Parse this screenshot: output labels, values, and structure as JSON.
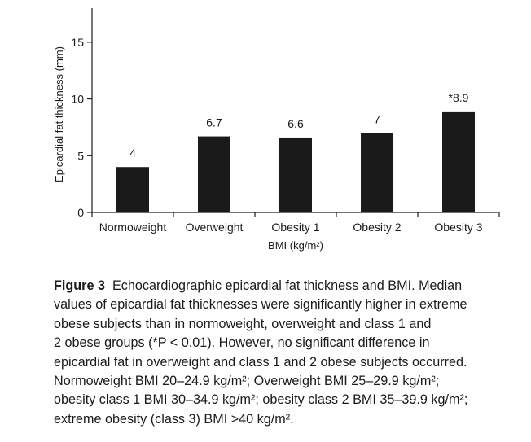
{
  "chart_data": {
    "type": "bar",
    "categories": [
      "Normoweight",
      "Overweight",
      "Obesity 1",
      "Obesity 2",
      "Obesity 3"
    ],
    "values": [
      4,
      6.7,
      6.6,
      7,
      8.9
    ],
    "data_labels": [
      "4",
      "6.7",
      "6.6",
      "7",
      "*8.9"
    ],
    "ylabel": "Epicardial fat thickness (mm)",
    "xlabel": "BMI (kg/m²)",
    "ylim": [
      0,
      18
    ],
    "yticks": [
      0,
      5,
      10,
      15
    ],
    "grid": false,
    "bar_color": "#1a1a1a"
  },
  "caption": {
    "label": "Figure 3",
    "lines": [
      "Echocardiographic epicardial fat thickness and BMI. Median",
      "values of epicardial fat thicknesses were significantly higher in extreme",
      "obese subjects than in normoweight, overweight and class 1 and",
      "2 obese groups (*P < 0.01). However, no significant difference in",
      "epicardial fat in overweight and class 1 and 2 obese subjects occurred.",
      "Normoweight BMI 20–24.9 kg/m²; Overweight BMI 25–29.9 kg/m²;",
      "obesity class 1 BMI 30–34.9 kg/m²; obesity class 2 BMI 35–39.9 kg/m²;",
      "extreme obesity (class 3) BMI >40 kg/m²."
    ]
  }
}
